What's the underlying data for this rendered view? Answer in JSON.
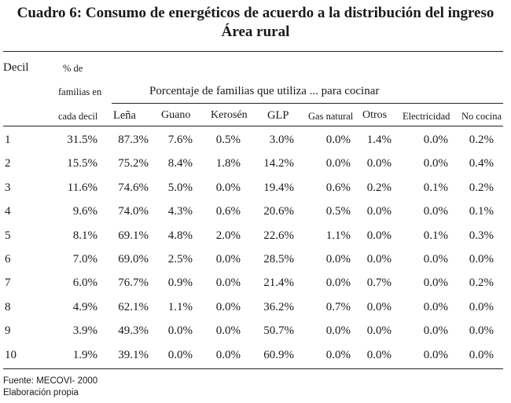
{
  "title": {
    "line1": "Cuadro 6: Consumo de energéticos de acuerdo a la distribución del ingreso",
    "line2": "Área rural"
  },
  "header": {
    "decil": "Decil",
    "pct_line1": "% de",
    "pct_line2": "familias en",
    "pct_line3": "cada decil",
    "group": "Porcentaje de familias que utiliza ... para cocinar",
    "columns": [
      "Leña",
      "Guano",
      "Kerosén",
      "GLP",
      "Gas natural",
      "Otros",
      "Electricidad",
      "No cocina"
    ]
  },
  "rows": [
    {
      "decil": "1",
      "pct": "31.5%",
      "vals": [
        "87.3%",
        "7.6%",
        "0.5%",
        "3.0%",
        "0.0%",
        "1.4%",
        "0.0%",
        "0.2%"
      ]
    },
    {
      "decil": "2",
      "pct": "15.5%",
      "vals": [
        "75.2%",
        "8.4%",
        "1.8%",
        "14.2%",
        "0.0%",
        "0.0%",
        "0.0%",
        "0.4%"
      ]
    },
    {
      "decil": "3",
      "pct": "11.6%",
      "vals": [
        "74.6%",
        "5.0%",
        "0.0%",
        "19.4%",
        "0.6%",
        "0.2%",
        "0.1%",
        "0.2%"
      ]
    },
    {
      "decil": "4",
      "pct": "9.6%",
      "vals": [
        "74.0%",
        "4.3%",
        "0.6%",
        "20.6%",
        "0.5%",
        "0.0%",
        "0.0%",
        "0.1%"
      ]
    },
    {
      "decil": "5",
      "pct": "8.1%",
      "vals": [
        "69.1%",
        "4.8%",
        "2.0%",
        "22.6%",
        "1.1%",
        "0.0%",
        "0.1%",
        "0.3%"
      ]
    },
    {
      "decil": "6",
      "pct": "7.0%",
      "vals": [
        "69.0%",
        "2.5%",
        "0.0%",
        "28.5%",
        "0.0%",
        "0.0%",
        "0.0%",
        "0.0%"
      ]
    },
    {
      "decil": "7",
      "pct": "6.0%",
      "vals": [
        "76.7%",
        "0.9%",
        "0.0%",
        "21.4%",
        "0.0%",
        "0.7%",
        "0.0%",
        "0.2%"
      ]
    },
    {
      "decil": "8",
      "pct": "4.9%",
      "vals": [
        "62.1%",
        "1.1%",
        "0.0%",
        "36.2%",
        "0.7%",
        "0.0%",
        "0.0%",
        "0.0%"
      ]
    },
    {
      "decil": "9",
      "pct": "3.9%",
      "vals": [
        "49.3%",
        "0.0%",
        "0.0%",
        "50.7%",
        "0.0%",
        "0.0%",
        "0.0%",
        "0.0%"
      ]
    },
    {
      "decil": "10",
      "pct": "1.9%",
      "vals": [
        "39.1%",
        "0.0%",
        "0.0%",
        "60.9%",
        "0.0%",
        "0.0%",
        "0.0%",
        "0.0%"
      ]
    }
  ],
  "footer": {
    "source": "Fuente: MECOVI- 2000",
    "note": "Elaboración propia"
  }
}
